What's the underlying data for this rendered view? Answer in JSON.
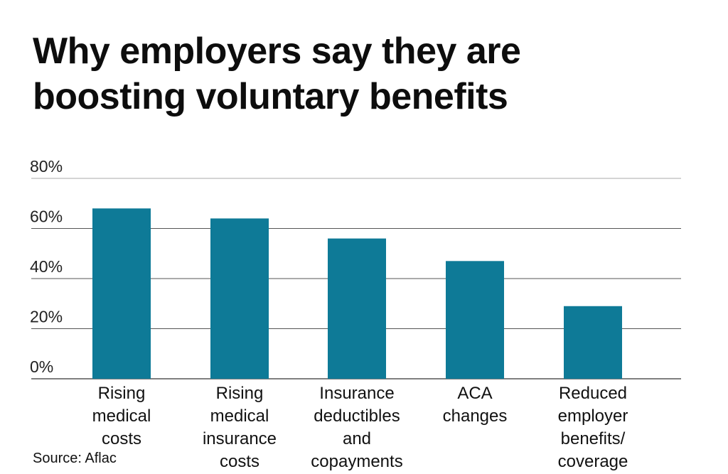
{
  "title": "Why employers say they are boosting voluntary benefits",
  "source": "Source: Aflac",
  "colors": {
    "bar": "#0e7a97",
    "grid": "#555555",
    "grid_top": "#aaaaaa"
  },
  "chart_data": {
    "type": "bar",
    "title": "Why employers say they are boosting voluntary benefits",
    "xlabel": "",
    "ylabel": "",
    "ylim": [
      0,
      80
    ],
    "yticks": [
      0,
      20,
      40,
      60,
      80
    ],
    "ytick_labels": [
      "0%",
      "20%",
      "40%",
      "60%",
      "80%"
    ],
    "grid": true,
    "categories": [
      [
        "Rising",
        "medical",
        "costs"
      ],
      [
        "Rising",
        "medical",
        "insurance",
        "costs"
      ],
      [
        "Insurance",
        "deductibles",
        "and",
        "copayments"
      ],
      [
        "ACA",
        "changes"
      ],
      [
        "Reduced",
        "employer",
        "benefits/",
        "coverage"
      ]
    ],
    "values": [
      68,
      64,
      56,
      47,
      29
    ]
  }
}
